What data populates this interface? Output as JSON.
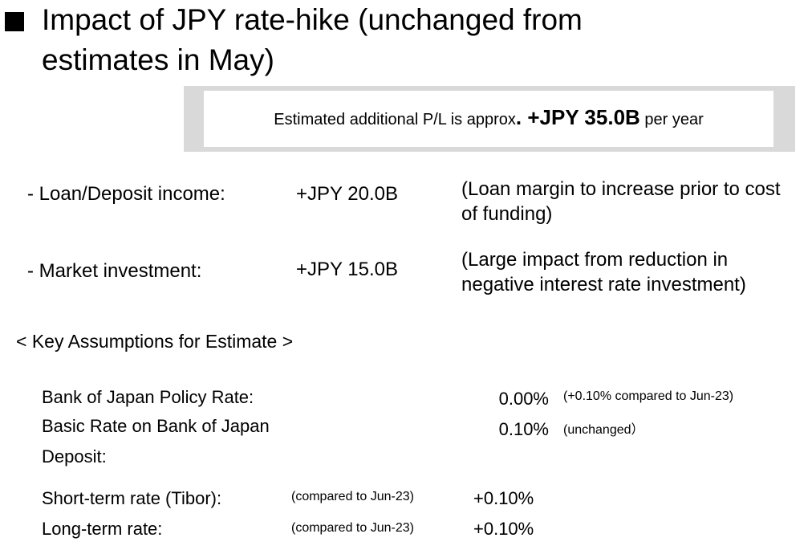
{
  "title": {
    "line1": "Impact of JPY rate-hike (unchanged from",
    "line2": "estimates in May)"
  },
  "summary": {
    "prefix": "Estimated additional P/L is approx",
    "dot": ". ",
    "amount": "+JPY 35.0B",
    "suffix": " per year"
  },
  "impacts": [
    {
      "label": "- Loan/Deposit income:",
      "value": "+JPY 20.0B",
      "note": "(Loan margin to increase prior to cost of funding)"
    },
    {
      "label": "- Market investment:",
      "value": "+JPY 15.0B",
      "note": "(Large impact from reduction in negative interest rate investment)"
    }
  ],
  "assumptions": {
    "heading": "< Key Assumptions for Estimate >",
    "policy_rate": {
      "label": "Bank of Japan  Policy Rate:",
      "value": "0.00%",
      "note": "(+0.10% compared to Jun-23)"
    },
    "basic_rate": {
      "label_line1": "Basic Rate on Bank of Japan",
      "label_line2": "Deposit:",
      "value": "0.10%",
      "note": "(unchanged）"
    },
    "short_term": {
      "label": "Short-term rate (Tibor):",
      "note": "(compared to Jun-23)",
      "value": "+0.10%"
    },
    "long_term": {
      "label": "Long-term rate:",
      "note": "(compared to Jun-23)",
      "value": "+0.10%"
    }
  }
}
